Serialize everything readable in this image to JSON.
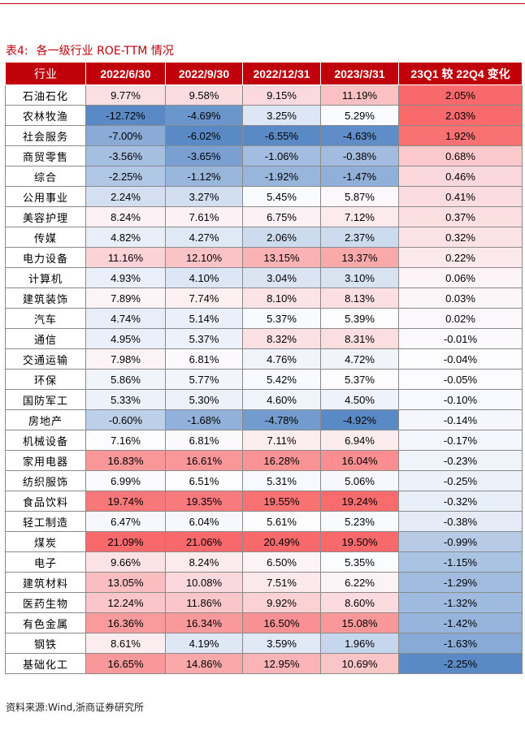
{
  "caption": {
    "label": "表4:",
    "title": "各一级行业 ROE-TTM 情况"
  },
  "table": {
    "headers": [
      "行业",
      "2022/6/30",
      "2022/9/30",
      "2022/12/31",
      "2023/3/31",
      "23Q1 较 22Q4 变化"
    ],
    "rows": [
      [
        "石油石化",
        "9.77%",
        "9.58%",
        "9.15%",
        "11.19%",
        "2.05%"
      ],
      [
        "农林牧渔",
        "-12.72%",
        "-4.69%",
        "3.25%",
        "5.29%",
        "2.03%"
      ],
      [
        "社会服务",
        "-7.00%",
        "-6.02%",
        "-6.55%",
        "-4.63%",
        "1.92%"
      ],
      [
        "商贸零售",
        "-3.56%",
        "-3.65%",
        "-1.06%",
        "-0.38%",
        "0.68%"
      ],
      [
        "综合",
        "-2.25%",
        "-1.12%",
        "-1.92%",
        "-1.47%",
        "0.46%"
      ],
      [
        "公用事业",
        "2.24%",
        "3.27%",
        "5.45%",
        "5.87%",
        "0.41%"
      ],
      [
        "美容护理",
        "8.24%",
        "7.61%",
        "6.75%",
        "7.12%",
        "0.37%"
      ],
      [
        "传媒",
        "4.82%",
        "4.27%",
        "2.06%",
        "2.37%",
        "0.32%"
      ],
      [
        "电力设备",
        "11.16%",
        "12.10%",
        "13.15%",
        "13.37%",
        "0.22%"
      ],
      [
        "计算机",
        "4.93%",
        "4.10%",
        "3.04%",
        "3.10%",
        "0.06%"
      ],
      [
        "建筑装饰",
        "7.89%",
        "7.74%",
        "8.10%",
        "8.13%",
        "0.03%"
      ],
      [
        "汽车",
        "4.74%",
        "5.14%",
        "5.37%",
        "5.39%",
        "0.02%"
      ],
      [
        "通信",
        "4.95%",
        "5.37%",
        "8.32%",
        "8.31%",
        "-0.01%"
      ],
      [
        "交通运输",
        "7.98%",
        "6.81%",
        "4.76%",
        "4.72%",
        "-0.04%"
      ],
      [
        "环保",
        "5.86%",
        "5.77%",
        "5.42%",
        "5.37%",
        "-0.05%"
      ],
      [
        "国防军工",
        "5.33%",
        "5.30%",
        "4.60%",
        "4.50%",
        "-0.10%"
      ],
      [
        "房地产",
        "-0.60%",
        "-1.68%",
        "-4.78%",
        "-4.92%",
        "-0.14%"
      ],
      [
        "机械设备",
        "7.16%",
        "6.81%",
        "7.11%",
        "6.94%",
        "-0.17%"
      ],
      [
        "家用电器",
        "16.83%",
        "16.61%",
        "16.28%",
        "16.04%",
        "-0.23%"
      ],
      [
        "纺织服饰",
        "6.99%",
        "6.51%",
        "5.31%",
        "5.06%",
        "-0.25%"
      ],
      [
        "食品饮料",
        "19.74%",
        "19.35%",
        "19.55%",
        "19.24%",
        "-0.32%"
      ],
      [
        "轻工制造",
        "6.47%",
        "6.04%",
        "5.61%",
        "5.23%",
        "-0.38%"
      ],
      [
        "煤炭",
        "21.09%",
        "21.06%",
        "20.49%",
        "19.50%",
        "-0.99%"
      ],
      [
        "电子",
        "9.66%",
        "8.24%",
        "6.50%",
        "5.35%",
        "-1.15%"
      ],
      [
        "建筑材料",
        "13.05%",
        "10.08%",
        "7.51%",
        "6.22%",
        "-1.29%"
      ],
      [
        "医药生物",
        "12.24%",
        "11.86%",
        "9.92%",
        "8.60%",
        "-1.32%"
      ],
      [
        "有色金属",
        "16.36%",
        "16.34%",
        "16.50%",
        "15.08%",
        "-1.42%"
      ],
      [
        "钢铁",
        "8.61%",
        "4.19%",
        "3.59%",
        "1.96%",
        "-1.63%"
      ],
      [
        "基础化工",
        "16.65%",
        "14.86%",
        "12.95%",
        "10.69%",
        "-2.25%"
      ]
    ]
  },
  "source": "资料来源:Wind,浙商证券研究所",
  "colors": {
    "header_bg": "#c0000b",
    "positive": "#f8696b",
    "negative": "#5a8ac6",
    "neutral": "#fcfcff"
  }
}
